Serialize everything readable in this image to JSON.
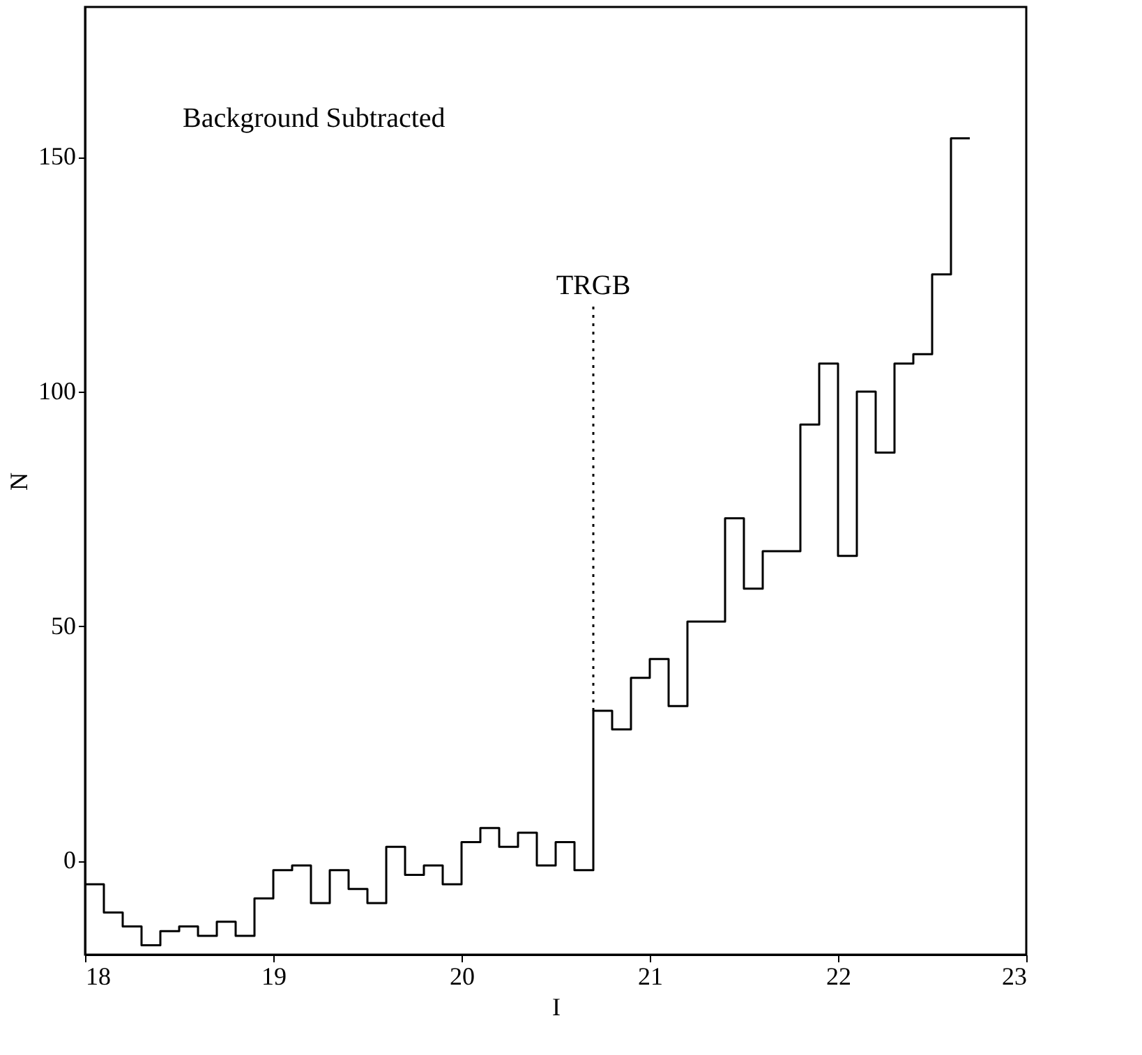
{
  "chart_data": {
    "type": "histogram",
    "xlabel": "I",
    "ylabel": "N",
    "bins": [
      18.0,
      18.1,
      18.2,
      18.3,
      18.4,
      18.5,
      18.6,
      18.7,
      18.8,
      18.9,
      19.0,
      19.1,
      19.2,
      19.3,
      19.4,
      19.5,
      19.6,
      19.7,
      19.8,
      19.9,
      20.0,
      20.1,
      20.2,
      20.3,
      20.4,
      20.5,
      20.6,
      20.7,
      20.8,
      20.9,
      21.0,
      21.1,
      21.2,
      21.3,
      21.4,
      21.5,
      21.6,
      21.7,
      21.8,
      21.9,
      22.0,
      22.1,
      22.2,
      22.3,
      22.4,
      22.5,
      22.6,
      22.7
    ],
    "values": [
      -5,
      -11,
      -14,
      -18,
      -15,
      -14,
      -16,
      -13,
      -16,
      -8,
      -2,
      -1,
      -9,
      -2,
      -6,
      -9,
      3,
      -3,
      -1,
      -5,
      4,
      7,
      3,
      6,
      -1,
      4,
      -2,
      32,
      28,
      39,
      43,
      33,
      51,
      51,
      73,
      58,
      66,
      66,
      93,
      106,
      65,
      100,
      87,
      106,
      108,
      125,
      154
    ],
    "color": "#000000",
    "xlim": [
      18,
      23
    ],
    "ylim": [
      -20,
      182
    ],
    "xticks": [
      18,
      19,
      20,
      21,
      22,
      23
    ],
    "yticks": [
      0,
      50,
      100,
      150
    ],
    "grid": false,
    "ref_lines": [
      {
        "axis": "x",
        "value": 20.7,
        "label": "TRGB",
        "line_style": "dotted"
      }
    ],
    "annotations": [
      "Background Subtracted"
    ]
  }
}
